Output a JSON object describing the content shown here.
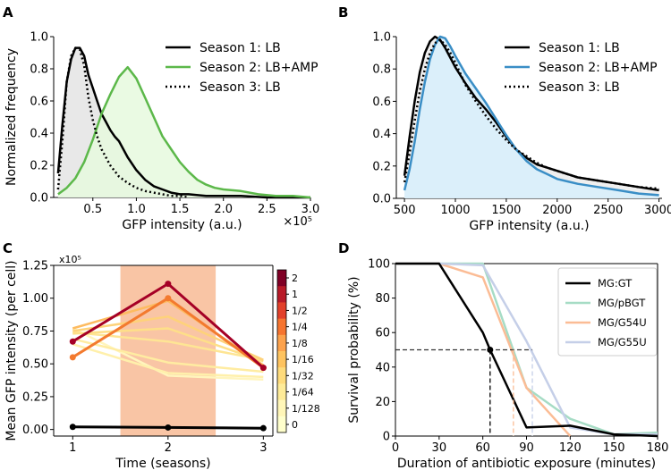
{
  "panels": {
    "A": {
      "letter": "A"
    },
    "B": {
      "letter": "B"
    },
    "C": {
      "letter": "C"
    },
    "D": {
      "letter": "D"
    }
  },
  "chart_data": [
    {
      "id": "A",
      "type": "area",
      "xlabel": "GFP intensity (a.u.)",
      "ylabel": "Normalized frequency",
      "x_multiplier": "×10⁵",
      "xlim": [
        0.05,
        3.0
      ],
      "ylim": [
        0,
        1.0
      ],
      "xticks": [
        0.5,
        1.0,
        1.5,
        2.0,
        2.5,
        3.0
      ],
      "xtick_labels": [
        "0.5",
        "1.0",
        "1.5",
        "2.0",
        "2.5",
        "3.0"
      ],
      "yticks": [
        0,
        0.2,
        0.4,
        0.6,
        0.8,
        1.0
      ],
      "ytick_labels": [
        "0.0",
        "0.2",
        "0.4",
        "0.6",
        "0.8",
        "1.0"
      ],
      "legend_position": "top-right",
      "series": [
        {
          "name": "Season 1: LB",
          "color": "#000000",
          "style": "solid",
          "fill": "#e4e4e4",
          "x": [
            0.1,
            0.15,
            0.2,
            0.25,
            0.3,
            0.35,
            0.4,
            0.45,
            0.5,
            0.55,
            0.6,
            0.65,
            0.7,
            0.75,
            0.8,
            0.9,
            1.0,
            1.1,
            1.2,
            1.3,
            1.4,
            1.5,
            1.6,
            1.8,
            2.0,
            2.2,
            2.5,
            2.8,
            3.0
          ],
          "y": [
            0.15,
            0.45,
            0.72,
            0.86,
            0.93,
            0.93,
            0.88,
            0.76,
            0.68,
            0.6,
            0.52,
            0.47,
            0.42,
            0.38,
            0.35,
            0.25,
            0.17,
            0.11,
            0.07,
            0.05,
            0.03,
            0.02,
            0.02,
            0.01,
            0.01,
            0.01,
            0.0,
            0.0,
            0.0
          ]
        },
        {
          "name": "Season 2: LB+AMP",
          "color": "#5cb84a",
          "style": "solid",
          "fill": "#e6f9de",
          "x": [
            0.1,
            0.2,
            0.3,
            0.4,
            0.5,
            0.6,
            0.7,
            0.8,
            0.9,
            1.0,
            1.1,
            1.2,
            1.3,
            1.4,
            1.5,
            1.6,
            1.7,
            1.8,
            1.9,
            2.0,
            2.2,
            2.4,
            2.6,
            2.8,
            3.0
          ],
          "y": [
            0.02,
            0.06,
            0.12,
            0.22,
            0.36,
            0.52,
            0.64,
            0.75,
            0.81,
            0.74,
            0.62,
            0.5,
            0.38,
            0.3,
            0.22,
            0.16,
            0.11,
            0.08,
            0.06,
            0.05,
            0.04,
            0.02,
            0.01,
            0.01,
            0.0
          ]
        },
        {
          "name": "Season 3: LB",
          "color": "#000000",
          "style": "dotted",
          "fill": "none",
          "x": [
            0.1,
            0.15,
            0.2,
            0.25,
            0.3,
            0.35,
            0.4,
            0.45,
            0.5,
            0.55,
            0.6,
            0.7,
            0.8,
            0.9,
            1.0,
            1.1,
            1.2,
            1.3,
            1.4,
            1.5,
            1.6
          ],
          "y": [
            0.05,
            0.35,
            0.72,
            0.88,
            0.93,
            0.92,
            0.82,
            0.62,
            0.48,
            0.38,
            0.3,
            0.2,
            0.13,
            0.09,
            0.06,
            0.04,
            0.03,
            0.02,
            0.01,
            0.01,
            0.0
          ]
        }
      ]
    },
    {
      "id": "B",
      "type": "area",
      "xlabel": "GFP intensity (a.u.)",
      "ylabel": "",
      "xlim": [
        420,
        3030
      ],
      "ylim": [
        0,
        1.0
      ],
      "xticks": [
        500,
        1000,
        1500,
        2000,
        2500,
        3000
      ],
      "xtick_labels": [
        "500",
        "1000",
        "1500",
        "2000",
        "2500",
        "3000"
      ],
      "yticks": [
        0,
        0.2,
        0.4,
        0.6,
        0.8,
        1.0
      ],
      "ytick_labels": [
        "0.0",
        "0.2",
        "0.4",
        "0.6",
        "0.8",
        "1.0"
      ],
      "legend_position": "top-right",
      "series": [
        {
          "name": "Season 1: LB",
          "color": "#000000",
          "style": "solid",
          "fill": "#ececec",
          "x": [
            500,
            550,
            600,
            650,
            700,
            750,
            800,
            850,
            900,
            950,
            1000,
            1100,
            1200,
            1300,
            1400,
            1500,
            1600,
            1700,
            1800,
            1900,
            2000,
            2200,
            2400,
            2600,
            2800,
            3000
          ],
          "y": [
            0.14,
            0.38,
            0.6,
            0.78,
            0.9,
            0.97,
            1.0,
            0.98,
            0.93,
            0.87,
            0.81,
            0.71,
            0.62,
            0.55,
            0.47,
            0.38,
            0.3,
            0.25,
            0.21,
            0.19,
            0.17,
            0.13,
            0.11,
            0.09,
            0.07,
            0.05
          ]
        },
        {
          "name": "Season 2: LB+AMP",
          "color": "#3a8ec6",
          "style": "solid",
          "fill": "#d7effb",
          "x": [
            500,
            550,
            600,
            650,
            700,
            750,
            800,
            850,
            900,
            950,
            1000,
            1100,
            1200,
            1300,
            1400,
            1500,
            1600,
            1700,
            1800,
            1900,
            2000,
            2200,
            2400,
            2600,
            2800,
            3000
          ],
          "y": [
            0.05,
            0.18,
            0.35,
            0.55,
            0.72,
            0.86,
            0.95,
            1.0,
            0.99,
            0.94,
            0.88,
            0.77,
            0.68,
            0.59,
            0.49,
            0.39,
            0.3,
            0.23,
            0.18,
            0.15,
            0.12,
            0.09,
            0.07,
            0.05,
            0.03,
            0.02
          ]
        },
        {
          "name": "Season 3: LB",
          "color": "#000000",
          "style": "dotted",
          "fill": "none",
          "x": [
            500,
            550,
            600,
            650,
            700,
            750,
            800,
            850,
            900,
            950,
            1000,
            1100,
            1200,
            1300,
            1400,
            1500,
            1600,
            1700,
            1800,
            1900,
            2000,
            2200,
            2400,
            2600,
            2800,
            3000
          ],
          "y": [
            0.1,
            0.28,
            0.48,
            0.66,
            0.8,
            0.9,
            0.96,
            0.98,
            0.95,
            0.9,
            0.84,
            0.7,
            0.6,
            0.51,
            0.43,
            0.36,
            0.3,
            0.26,
            0.22,
            0.19,
            0.17,
            0.13,
            0.11,
            0.09,
            0.07,
            0.06
          ]
        }
      ]
    },
    {
      "id": "C",
      "type": "line",
      "xlabel": "Time (seasons)",
      "ylabel": "Mean GFP intensity (per cell)",
      "y_multiplier": "x10⁵",
      "xlim": [
        0.8,
        3.1
      ],
      "ylim": [
        -0.05,
        1.25
      ],
      "xticks": [
        1,
        2,
        3
      ],
      "xtick_labels": [
        "1",
        "2",
        "3"
      ],
      "yticks": [
        0,
        0.25,
        0.5,
        0.75,
        1.0,
        1.25
      ],
      "ytick_labels": [
        "0.00",
        "0.25",
        "0.50",
        "0.75",
        "1.00",
        "1.25"
      ],
      "shaded_region": {
        "x": [
          1.5,
          2.5
        ],
        "color": "#f9c5a5"
      },
      "colorbar": {
        "labels": [
          "2",
          "1",
          "1/2",
          "1/4",
          "1/8",
          "1/16",
          "1/32",
          "1/64",
          "1/128",
          "0"
        ],
        "colors": [
          "#7f0025",
          "#b81a28",
          "#e2402a",
          "#f6742f",
          "#fca24c",
          "#fec35f",
          "#fedb7c",
          "#feeb98",
          "#fff6b8",
          "#ffffcc"
        ]
      },
      "x": [
        1,
        2,
        3
      ],
      "series": [
        {
          "name": "2",
          "color": "#a50026",
          "values": [
            0.67,
            1.11,
            0.47
          ],
          "markers": true
        },
        {
          "name": "1",
          "color": "#f37a2f",
          "values": [
            0.55,
            1.0,
            0.47
          ],
          "markers": true
        },
        {
          "name": "1/2",
          "color": "#fdbb60",
          "values": [
            0.77,
            0.98,
            0.49
          ],
          "markers": false
        },
        {
          "name": "1/4",
          "color": "#fed27a",
          "values": [
            0.75,
            0.86,
            0.53
          ],
          "markers": false
        },
        {
          "name": "1/8",
          "color": "#fedf88",
          "values": [
            0.73,
            0.77,
            0.52
          ],
          "markers": false
        },
        {
          "name": "1/16",
          "color": "#fee594",
          "values": [
            0.74,
            0.67,
            0.53
          ],
          "markers": false
        },
        {
          "name": "1/32",
          "color": "#ffeca1",
          "values": [
            0.69,
            0.51,
            0.44
          ],
          "markers": false
        },
        {
          "name": "1/64",
          "color": "#fff0ab",
          "values": [
            0.65,
            0.43,
            0.4
          ],
          "markers": false
        },
        {
          "name": "1/128",
          "color": "#fff5bd",
          "values": [
            0.77,
            0.41,
            0.38
          ],
          "markers": false
        },
        {
          "name": "0",
          "color": "#000000",
          "values": [
            0.02,
            0.015,
            0.01
          ],
          "markers": true
        }
      ]
    },
    {
      "id": "D",
      "type": "line",
      "xlabel": "Duration of antibiotic exposure (minutes)",
      "ylabel": "Survival probability (%)",
      "xlim": [
        0,
        180
      ],
      "ylim": [
        0,
        100
      ],
      "xticks": [
        0,
        30,
        60,
        90,
        120,
        150,
        180
      ],
      "xtick_labels": [
        "0",
        "30",
        "60",
        "90",
        "120",
        "150",
        "180"
      ],
      "yticks": [
        0,
        20,
        40,
        60,
        80,
        100
      ],
      "ytick_labels": [
        "0",
        "20",
        "40",
        "60",
        "80",
        "100"
      ],
      "legend_position": "top-right",
      "series": [
        {
          "name": "MG:GT",
          "color": "#000000",
          "x": [
            0,
            30,
            60,
            65,
            90,
            120,
            150,
            180
          ],
          "y": [
            100,
            100,
            60,
            50,
            5,
            6,
            1,
            0
          ]
        },
        {
          "name": "MG/pBGT",
          "color": "#a6dcc5",
          "x": [
            0,
            30,
            60,
            90,
            120,
            150,
            180
          ],
          "y": [
            100,
            100,
            100,
            28,
            10,
            1,
            2
          ]
        },
        {
          "name": "MG/G54U",
          "color": "#fbbc95",
          "x": [
            0,
            30,
            60,
            90,
            120
          ],
          "y": [
            100,
            100,
            92,
            28,
            0
          ]
        },
        {
          "name": "MG/G55U",
          "color": "#c5cfe8",
          "x": [
            0,
            30,
            60,
            90,
            120,
            150,
            180
          ],
          "y": [
            100,
            100,
            99,
            55,
            5,
            1,
            1
          ]
        }
      ],
      "reference_lines": {
        "horizontal_y": 50,
        "vertical_x": [
          {
            "x": 65,
            "color": "#000000"
          },
          {
            "x": 81,
            "color": "#fbbc95"
          },
          {
            "x": 94,
            "color": "#c5cfe8"
          }
        ]
      }
    }
  ]
}
